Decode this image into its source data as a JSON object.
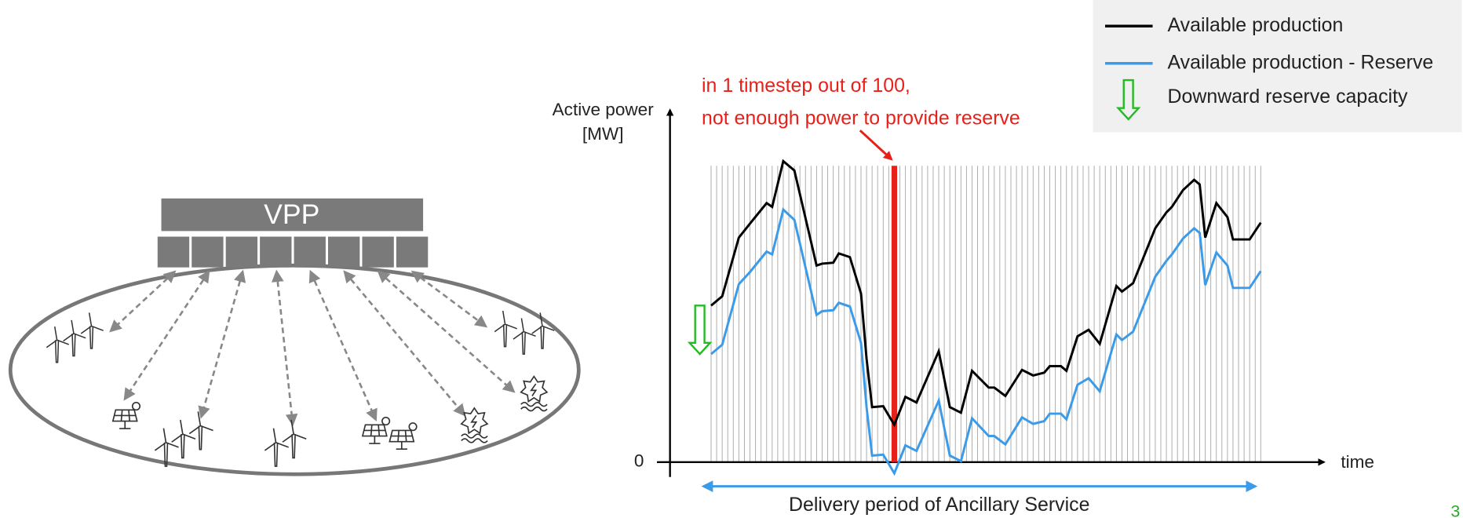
{
  "diagram": {
    "title": "VPP"
  },
  "chart_data": {
    "type": "line",
    "y_label": [
      "Active power",
      "[MW]"
    ],
    "x_label": "time",
    "annotation": [
      "in 1 timestep out of 100,",
      "not enough power to provide reserve"
    ],
    "delivery_label": "Delivery period of Ancillary Service",
    "reserve_label": "Downward reserve capacity",
    "reserve_color": "#22bb22",
    "highlight_x": 34,
    "highlight_color": "#e8201a",
    "xlim": [
      -6.4,
      111.4
    ],
    "ylim": [
      -20,
      378
    ],
    "yticks": [
      0
    ],
    "x": [
      1,
      3,
      6,
      8,
      11,
      12,
      14,
      16,
      20,
      21,
      23,
      24,
      26,
      28,
      29,
      30,
      32,
      34,
      36,
      38,
      42,
      44,
      46,
      48,
      51,
      52,
      54,
      57,
      59,
      61,
      62,
      64,
      65,
      67,
      69,
      71,
      74,
      75,
      77,
      81,
      83,
      84,
      86,
      88,
      89,
      90,
      92,
      94,
      95,
      98,
      100
    ],
    "series": [
      {
        "name": "Available production",
        "color": "#000000",
        "values": [
          168,
          178,
          241,
          256,
          278,
          274,
          323,
          313,
          211,
          213,
          214,
          224,
          220,
          181,
          111,
          59,
          60,
          40,
          70,
          64,
          119,
          59,
          53,
          98,
          80,
          80,
          71,
          99,
          93,
          96,
          103,
          103,
          98,
          135,
          142,
          127,
          189,
          183,
          192,
          251,
          268,
          274,
          292,
          303,
          298,
          241,
          278,
          263,
          239,
          239,
          257
        ]
      },
      {
        "name": "Available production - Reserve",
        "color": "#3b9be8",
        "values": [
          116,
          126,
          191,
          204,
          226,
          223,
          271,
          260,
          158,
          162,
          163,
          171,
          167,
          128,
          59,
          7,
          8,
          -12,
          18,
          12,
          66,
          7,
          1,
          47,
          28,
          28,
          19,
          48,
          41,
          44,
          52,
          52,
          46,
          83,
          90,
          76,
          137,
          131,
          140,
          199,
          216,
          223,
          240,
          251,
          246,
          190,
          225,
          211,
          187,
          187,
          205
        ]
      }
    ]
  },
  "page_number": "3"
}
